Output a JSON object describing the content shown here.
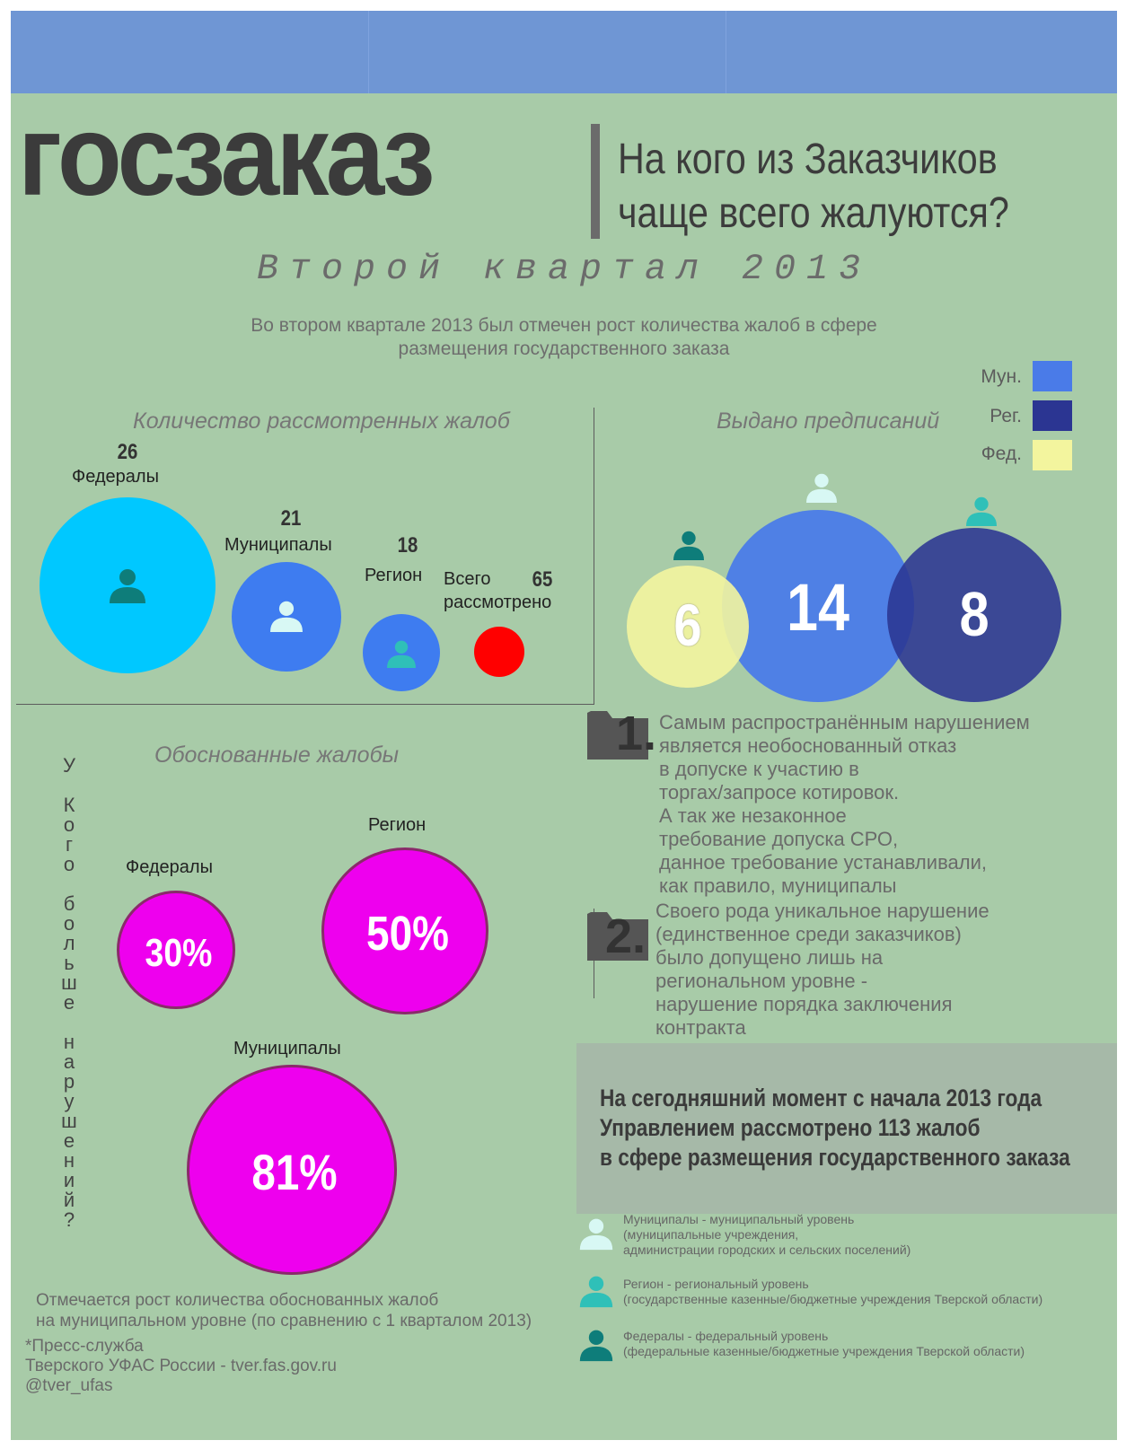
{
  "header": {
    "brand": "госзаказ",
    "question_line1": "На кого из Заказчиков",
    "question_line2": "чаще всего жалуются?",
    "subtitle": "Второй квартал 2013",
    "intro_line1": "Во втором квартале 2013 был отмечен рост количества жалоб в сфере",
    "intro_line2": "размещения государственного заказа"
  },
  "legend": [
    {
      "label": "Мун.",
      "color": "#4a7be8"
    },
    {
      "label": "Рег.",
      "color": "#2b3592"
    },
    {
      "label": "Фед.",
      "color": "#f3f59e"
    }
  ],
  "colors": {
    "background": "#a8cba8",
    "top_bar": "#6f96d4",
    "federal": "#00c8ff",
    "municipal": "#3e7cf0",
    "region": "#3e7cf0",
    "total": "#ff0000",
    "magenta": "#ee00ee",
    "icon_federal": "#0e7d7a",
    "icon_municipal": "#d8f8f4",
    "icon_region": "#2fc0b8"
  },
  "chart_data": [
    {
      "type": "bubble",
      "title": "Количество рассмотренных жалоб",
      "categories": [
        "Федералы",
        "Муниципалы",
        "Регион"
      ],
      "values": [
        26,
        21,
        18
      ],
      "total": {
        "label_line1": "Всего",
        "label_line2": "рассмотрено",
        "value": 65
      }
    },
    {
      "type": "bubble",
      "title": "Выдано предписаний",
      "categories": [
        "Фед.",
        "Мун.",
        "Рег."
      ],
      "values": [
        6,
        14,
        8
      ]
    },
    {
      "type": "bubble",
      "title": "Обоснованные жалобы",
      "categories": [
        "Федералы",
        "Регион",
        "Муниципалы"
      ],
      "values": [
        30,
        50,
        81
      ],
      "unit": "%",
      "side_label": "У Кого больше нарушений?"
    }
  ],
  "violations": [
    {
      "number": "1.",
      "lines": [
        "Самым распространённым нарушением",
        "является необоснованный отказ",
        "в допуске к участию в",
        "торгах/запросе котировок.",
        "А так же незаконное",
        "требование допуска СРО,",
        "данное требование устанавливали,",
        "как правило, муниципалы"
      ]
    },
    {
      "number": "2.",
      "lines": [
        "Своего рода уникальное нарушение",
        "(единственное среди заказчиков)",
        "было допущено лишь на",
        "региональном уровне -",
        "нарушение порядка заключения",
        "контракта"
      ]
    }
  ],
  "callout": [
    "На сегодняшний момент с начала 2013 года",
    "Управлением рассмотрено 113 жалоб",
    "в сфере размещения государственного заказа"
  ],
  "icon_legend": [
    {
      "icon": "person-icon",
      "color": "#d8f8f4",
      "line1": "Муниципалы - муниципальный уровень",
      "line2": "(муниципальные учреждения,",
      "line3": "администрации городских и сельских поселений)"
    },
    {
      "icon": "person-icon",
      "color": "#2fc0b8",
      "line1": "Регион - региональный уровень",
      "line2": "(государственные казенные/бюджетные учреждения Тверской области)",
      "line3": ""
    },
    {
      "icon": "person-icon",
      "color": "#0e7d7a",
      "line1": "Федералы - федеральный уровень",
      "line2": "(федеральные казенные/бюджетные учреждения Тверской области)",
      "line3": ""
    }
  ],
  "bottom_note": [
    "Отмечается рост количества обоснованных жалоб",
    "на муниципальном уровне (по сравнению с 1 кварталом 2013)"
  ],
  "press": [
    "*Пресс-служба",
    " Тверского УФАС России - tver.fas.gov.ru",
    " @tver_ufas"
  ]
}
